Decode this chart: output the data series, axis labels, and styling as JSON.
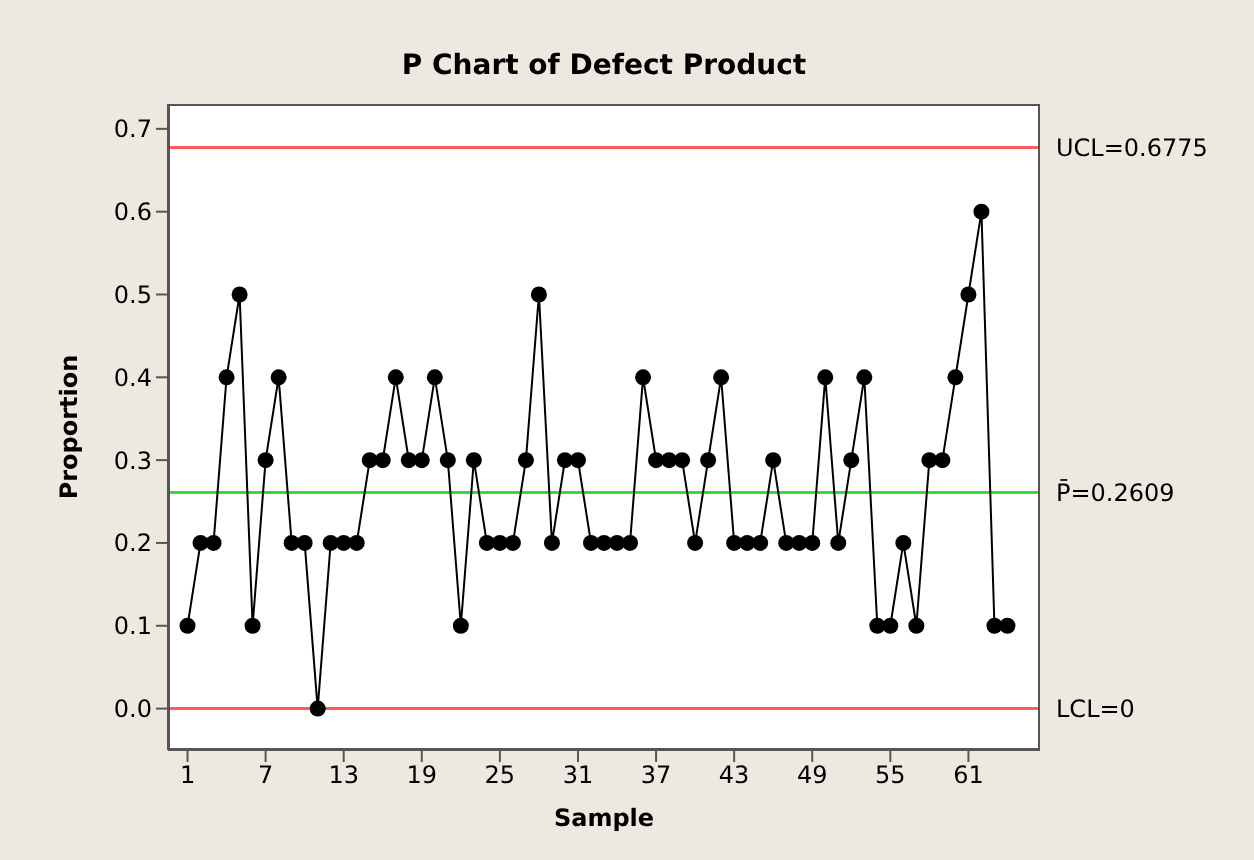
{
  "chart_data": {
    "type": "line",
    "title": "P Chart of Defect Product",
    "xlabel": "Sample",
    "ylabel": "Proportion",
    "x": [
      1,
      2,
      3,
      4,
      5,
      6,
      7,
      8,
      9,
      10,
      11,
      12,
      13,
      14,
      15,
      16,
      17,
      18,
      19,
      20,
      21,
      22,
      23,
      24,
      25,
      26,
      27,
      28,
      29,
      30,
      31,
      32,
      33,
      34,
      35,
      36,
      37,
      38,
      39,
      40,
      41,
      42,
      43,
      44,
      45,
      46,
      47,
      48,
      49,
      50,
      51,
      52,
      53,
      54,
      55,
      56,
      57,
      58,
      59,
      60,
      61,
      62,
      63,
      64
    ],
    "series": [
      {
        "color": "#000000",
        "values": [
          0.1,
          0.2,
          0.2,
          0.4,
          0.5,
          0.1,
          0.3,
          0.4,
          0.2,
          0.2,
          0,
          0.2,
          0.2,
          0.2,
          0.3,
          0.3,
          0.4,
          0.3,
          0.3,
          0.4,
          0.3,
          0.1,
          0.3,
          0.2,
          0.2,
          0.2,
          0.3,
          0.5,
          0.2,
          0.3,
          0.3,
          0.2,
          0.2,
          0.2,
          0.2,
          0.4,
          0.3,
          0.3,
          0.3,
          0.2,
          0.3,
          0.4,
          0.2,
          0.2,
          0.2,
          0.3,
          0.2,
          0.2,
          0.2,
          0.4,
          0.2,
          0.3,
          0.4,
          0.1,
          0.1,
          0.2,
          0.1,
          0.3,
          0.3,
          0.4,
          0.5,
          0.6,
          0.1,
          0.1
        ]
      }
    ],
    "xlim": [
      -0.5,
      66.5
    ],
    "xticks": [
      1,
      7,
      13,
      19,
      25,
      31,
      37,
      43,
      49,
      55,
      61
    ],
    "ylim": [
      -0.05,
      0.73
    ],
    "yticks": [
      {
        "value": 0,
        "label": "0.0"
      },
      0.1,
      0.2,
      0.3,
      0.4,
      0.5,
      0.6,
      0.7
    ],
    "ref_lines": [
      {
        "axis": "y",
        "value": 0.6775,
        "label": "UCL=0.6775",
        "color": "#ff5a5a"
      },
      {
        "axis": "y",
        "value": 0.2609,
        "label": "P̄=0.2609",
        "color": "#33dd33"
      },
      {
        "axis": "y",
        "value": 0,
        "label": "LCL=0",
        "color": "#ff5a5a"
      }
    ],
    "marker": "circle",
    "line_style": "solid",
    "grid": false,
    "legend": false
  }
}
